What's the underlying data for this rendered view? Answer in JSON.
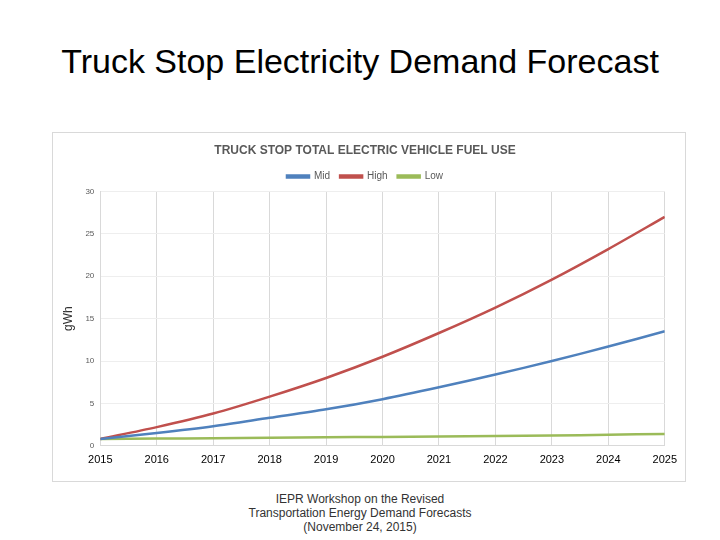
{
  "slide": {
    "title": "Truck Stop Electricity Demand Forecast",
    "footer": [
      "IEPR Workshop on the Revised",
      "Transportation Energy Demand Forecasts",
      "(November 24, 2015)"
    ]
  },
  "chart_data": {
    "type": "line",
    "title": "TRUCK STOP TOTAL ELECTRIC VEHICLE FUEL USE",
    "y_label": "gWh",
    "categories": [
      "2015",
      "2016",
      "2017",
      "2018",
      "2019",
      "2020",
      "2021",
      "2022",
      "2023",
      "2024",
      "2025"
    ],
    "series": [
      {
        "name": "Mid",
        "color": "#4f81bd",
        "values": [
          0.8,
          1.5,
          2.3,
          3.3,
          4.3,
          5.5,
          6.9,
          8.4,
          10.0,
          11.7,
          13.5
        ]
      },
      {
        "name": "High",
        "color": "#c0504d",
        "values": [
          0.8,
          2.2,
          3.8,
          5.8,
          8.0,
          10.5,
          13.3,
          16.3,
          19.6,
          23.2,
          27.0
        ]
      },
      {
        "name": "Low",
        "color": "#9bbb59",
        "values": [
          0.8,
          0.85,
          0.9,
          0.95,
          1.0,
          1.05,
          1.1,
          1.15,
          1.2,
          1.3,
          1.4
        ]
      }
    ],
    "ylim": [
      0,
      30
    ],
    "yticks": [
      0,
      5,
      10,
      15,
      20,
      25,
      30
    ],
    "grid": true,
    "legend": "top",
    "marker": "none"
  }
}
